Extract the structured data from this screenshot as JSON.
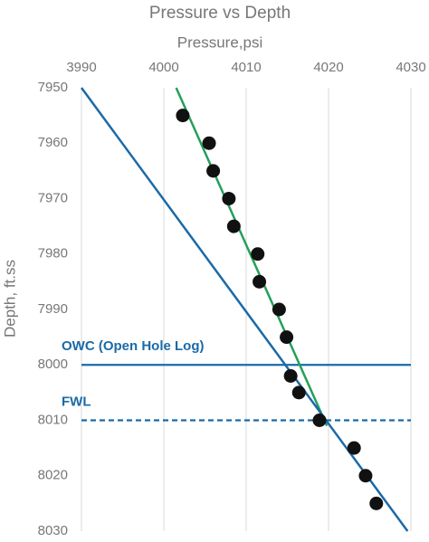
{
  "chart_data": {
    "type": "scatter",
    "title": "Pressure vs Depth",
    "x_label": "Pressure,psi",
    "y_label": "Depth, ft.ss",
    "xlim": [
      3990,
      4030
    ],
    "xticks": [
      3990,
      4000,
      4010,
      4020,
      4030
    ],
    "x_axis_position": "top",
    "ylim": [
      7950,
      8030
    ],
    "yticks": [
      7950,
      7960,
      7970,
      7980,
      7990,
      8000,
      8010,
      8020,
      8030
    ],
    "y_inverted": true,
    "grid": "x",
    "series": [
      {
        "kind": "scatter",
        "color": "#111111",
        "x": [
          4002.3,
          4005.5,
          4006.0,
          4007.9,
          4008.5,
          4011.4,
          4011.6,
          4014.0,
          4014.9,
          4015.4,
          4016.4,
          4018.9,
          4023.1,
          4024.5,
          4025.8
        ],
        "y": [
          7955,
          7960,
          7965,
          7970,
          7975,
          7980,
          7985,
          7990,
          7995,
          8002,
          8005,
          8010,
          8015,
          8020,
          8025
        ]
      },
      {
        "kind": "line",
        "color": "#24a05a",
        "x": [
          4001.5,
          4019.8
        ],
        "y": [
          7950,
          8011
        ]
      },
      {
        "kind": "line",
        "color": "#1a6aa8",
        "x": [
          3990,
          4029.6
        ],
        "y": [
          7950,
          8030
        ]
      }
    ],
    "hlines": [
      {
        "y": 8000,
        "label": "OWC (Open Hole Log)",
        "style": "solid",
        "color": "#1a6aa8"
      },
      {
        "y": 8010,
        "label": "FWL",
        "style": "dashed",
        "color": "#1a6aa8"
      }
    ]
  }
}
